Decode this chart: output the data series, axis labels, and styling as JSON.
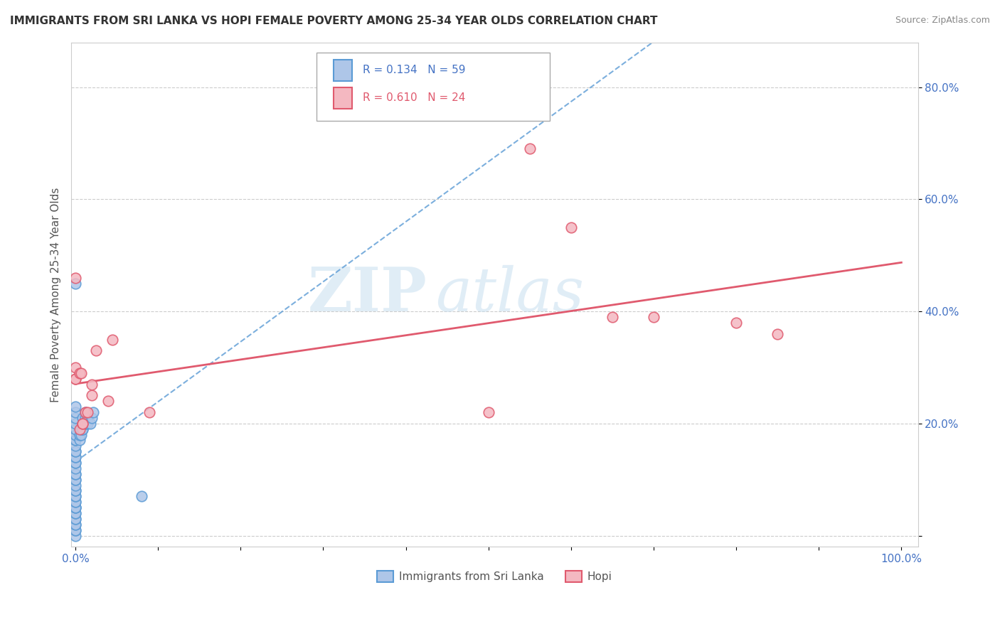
{
  "title": "IMMIGRANTS FROM SRI LANKA VS HOPI FEMALE POVERTY AMONG 25-34 YEAR OLDS CORRELATION CHART",
  "source": "Source: ZipAtlas.com",
  "ylabel": "Female Poverty Among 25-34 Year Olds",
  "legend_sri_lanka": "Immigrants from Sri Lanka",
  "legend_hopi": "Hopi",
  "r_sri_lanka": "R = 0.134",
  "n_sri_lanka": "N = 59",
  "r_hopi": "R = 0.610",
  "n_hopi": "N = 24",
  "color_sri_lanka_fill": "#aec6e8",
  "color_sri_lanka_edge": "#5b9bd5",
  "color_hopi_fill": "#f4b8c1",
  "color_hopi_edge": "#e05a6e",
  "color_trend_sri_lanka": "#5b9bd5",
  "color_trend_hopi": "#e05a6e",
  "watermark_zip": "ZIP",
  "watermark_atlas": "atlas",
  "ytick_vals": [
    0.0,
    0.2,
    0.4,
    0.6,
    0.8
  ],
  "ytick_labels": [
    "",
    "20.0%",
    "40.0%",
    "60.0%",
    "80.0%"
  ],
  "xlim": [
    -0.005,
    1.02
  ],
  "ylim": [
    -0.02,
    0.88
  ],
  "sri_lanka_x": [
    0.0,
    0.0,
    0.0,
    0.0,
    0.0,
    0.0,
    0.0,
    0.0,
    0.0,
    0.0,
    0.0,
    0.0,
    0.0,
    0.0,
    0.0,
    0.0,
    0.0,
    0.0,
    0.0,
    0.0,
    0.0,
    0.0,
    0.0,
    0.0,
    0.0,
    0.0,
    0.0,
    0.0,
    0.0,
    0.0,
    0.0,
    0.0,
    0.0,
    0.0,
    0.0,
    0.0,
    0.0,
    0.0,
    0.0,
    0.0,
    0.005,
    0.005,
    0.007,
    0.007,
    0.009,
    0.009,
    0.009,
    0.009,
    0.009,
    0.012,
    0.012,
    0.012,
    0.012,
    0.015,
    0.015,
    0.018,
    0.02,
    0.022,
    0.08
  ],
  "sri_lanka_y": [
    0.0,
    0.01,
    0.01,
    0.02,
    0.02,
    0.03,
    0.03,
    0.04,
    0.04,
    0.05,
    0.05,
    0.05,
    0.06,
    0.06,
    0.07,
    0.07,
    0.08,
    0.08,
    0.09,
    0.1,
    0.1,
    0.11,
    0.11,
    0.12,
    0.13,
    0.13,
    0.14,
    0.14,
    0.15,
    0.15,
    0.16,
    0.17,
    0.17,
    0.18,
    0.19,
    0.2,
    0.21,
    0.22,
    0.23,
    0.45,
    0.17,
    0.18,
    0.18,
    0.19,
    0.19,
    0.19,
    0.2,
    0.2,
    0.21,
    0.2,
    0.2,
    0.21,
    0.22,
    0.2,
    0.21,
    0.2,
    0.21,
    0.22,
    0.07
  ],
  "hopi_x": [
    0.0,
    0.0,
    0.0,
    0.0,
    0.005,
    0.005,
    0.007,
    0.009,
    0.009,
    0.012,
    0.015,
    0.02,
    0.02,
    0.025,
    0.04,
    0.045,
    0.09,
    0.5,
    0.55,
    0.6,
    0.65,
    0.7,
    0.8,
    0.85
  ],
  "hopi_y": [
    0.28,
    0.28,
    0.3,
    0.46,
    0.19,
    0.29,
    0.29,
    0.2,
    0.2,
    0.22,
    0.22,
    0.25,
    0.27,
    0.33,
    0.24,
    0.35,
    0.22,
    0.22,
    0.69,
    0.55,
    0.39,
    0.39,
    0.38,
    0.36
  ]
}
